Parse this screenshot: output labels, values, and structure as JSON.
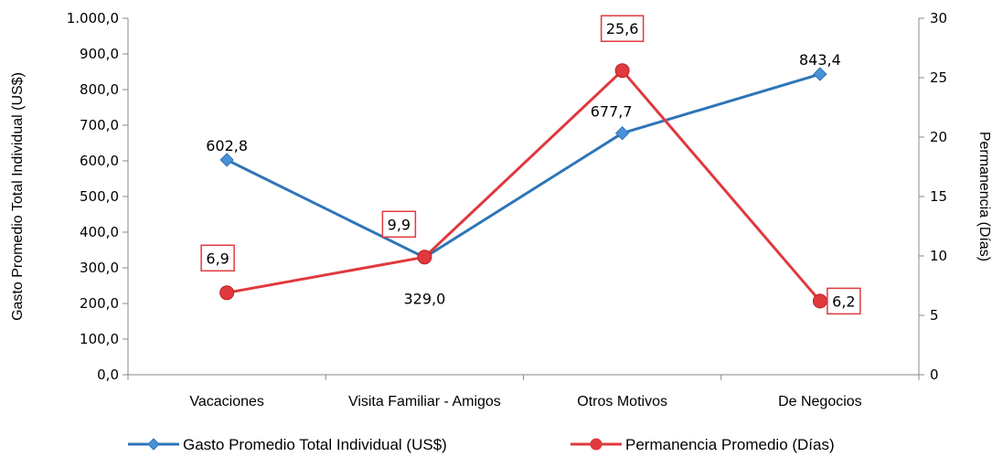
{
  "chart_data": {
    "type": "line",
    "categories": [
      "Vacaciones",
      "Visita Familiar - Amigos",
      "Otros Motivos",
      "De Negocios"
    ],
    "series": [
      {
        "name": "Gasto Promedio Total Individual (US$)",
        "axis": "left",
        "color": "#2E75B6",
        "marker": "diamond",
        "values": [
          602.8,
          329.0,
          677.7,
          843.4
        ],
        "labels": [
          "602,8",
          "329,0",
          "677,7",
          "843,4"
        ],
        "label_boxed": false
      },
      {
        "name": "Permanencia Promedio (Días)",
        "axis": "right",
        "color": "#E0393E",
        "marker": "circle",
        "values": [
          6.9,
          9.9,
          25.6,
          6.2
        ],
        "labels": [
          "6,9",
          "9,9",
          "25,6",
          "6,2"
        ],
        "label_boxed": true
      }
    ],
    "y_left": {
      "label": "Gasto  Promedio Total Individual (US$)",
      "lim": [
        0,
        1000
      ],
      "ticks": [
        0,
        100,
        200,
        300,
        400,
        500,
        600,
        700,
        800,
        900,
        1000
      ],
      "tick_labels": [
        "0,0",
        "100,0",
        "200,0",
        "300,0",
        "400,0",
        "500,0",
        "600,0",
        "700,0",
        "800,0",
        "900,0",
        "1.000,0"
      ]
    },
    "y_right": {
      "label": "Permanencia (Días)",
      "lim": [
        0,
        30
      ],
      "ticks": [
        0,
        5,
        10,
        15,
        20,
        25,
        30
      ],
      "tick_labels": [
        "0",
        "5",
        "10",
        "15",
        "20",
        "25",
        "30"
      ]
    },
    "grid": false,
    "legend": "bottom"
  }
}
